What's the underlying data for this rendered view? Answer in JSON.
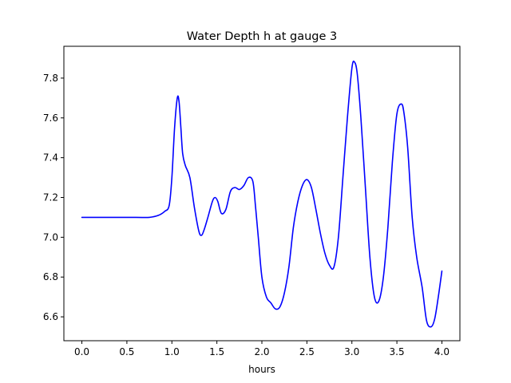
{
  "chart_data": {
    "type": "line",
    "title": "Water Depth h at gauge 3",
    "xlabel": "hours",
    "ylabel": "",
    "xlim": [
      -0.2,
      4.2
    ],
    "ylim": [
      6.48,
      7.96
    ],
    "xticks": [
      0.0,
      0.5,
      1.0,
      1.5,
      2.0,
      2.5,
      3.0,
      3.5,
      4.0
    ],
    "xtick_labels": [
      "0.0",
      "0.5",
      "1.0",
      "1.5",
      "2.0",
      "2.5",
      "3.0",
      "3.5",
      "4.0"
    ],
    "yticks": [
      6.6,
      6.8,
      7.0,
      7.2,
      7.4,
      7.6,
      7.8
    ],
    "ytick_labels": [
      "6.6",
      "6.8",
      "7.0",
      "7.2",
      "7.4",
      "7.6",
      "7.8"
    ],
    "grid": false,
    "series": [
      {
        "name": "h",
        "color": "#0000ff",
        "x": [
          0.0,
          0.3,
          0.6,
          0.75,
          0.85,
          0.92,
          0.97,
          1.0,
          1.03,
          1.06,
          1.08,
          1.1,
          1.12,
          1.15,
          1.2,
          1.25,
          1.3,
          1.33,
          1.36,
          1.4,
          1.45,
          1.48,
          1.51,
          1.55,
          1.6,
          1.65,
          1.7,
          1.75,
          1.8,
          1.85,
          1.9,
          1.93,
          1.96,
          2.0,
          2.05,
          2.1,
          2.15,
          2.2,
          2.25,
          2.3,
          2.35,
          2.4,
          2.45,
          2.5,
          2.55,
          2.6,
          2.65,
          2.7,
          2.75,
          2.8,
          2.85,
          2.9,
          2.95,
          3.0,
          3.03,
          3.06,
          3.1,
          3.15,
          3.2,
          3.25,
          3.3,
          3.35,
          3.4,
          3.45,
          3.5,
          3.55,
          3.58,
          3.62,
          3.67,
          3.72,
          3.78,
          3.83,
          3.88,
          3.92,
          3.96,
          4.0
        ],
        "y": [
          7.1,
          7.1,
          7.1,
          7.1,
          7.11,
          7.13,
          7.16,
          7.3,
          7.55,
          7.7,
          7.68,
          7.55,
          7.42,
          7.36,
          7.3,
          7.15,
          7.03,
          7.01,
          7.04,
          7.1,
          7.18,
          7.2,
          7.18,
          7.12,
          7.14,
          7.23,
          7.25,
          7.24,
          7.26,
          7.3,
          7.28,
          7.15,
          7.0,
          6.8,
          6.7,
          6.67,
          6.64,
          6.65,
          6.72,
          6.85,
          7.05,
          7.18,
          7.26,
          7.29,
          7.25,
          7.14,
          7.02,
          6.92,
          6.86,
          6.85,
          7.0,
          7.3,
          7.6,
          7.85,
          7.88,
          7.82,
          7.6,
          7.25,
          6.9,
          6.7,
          6.68,
          6.8,
          7.05,
          7.38,
          7.62,
          7.67,
          7.62,
          7.45,
          7.1,
          6.9,
          6.75,
          6.58,
          6.55,
          6.59,
          6.7,
          6.83
        ]
      }
    ]
  }
}
